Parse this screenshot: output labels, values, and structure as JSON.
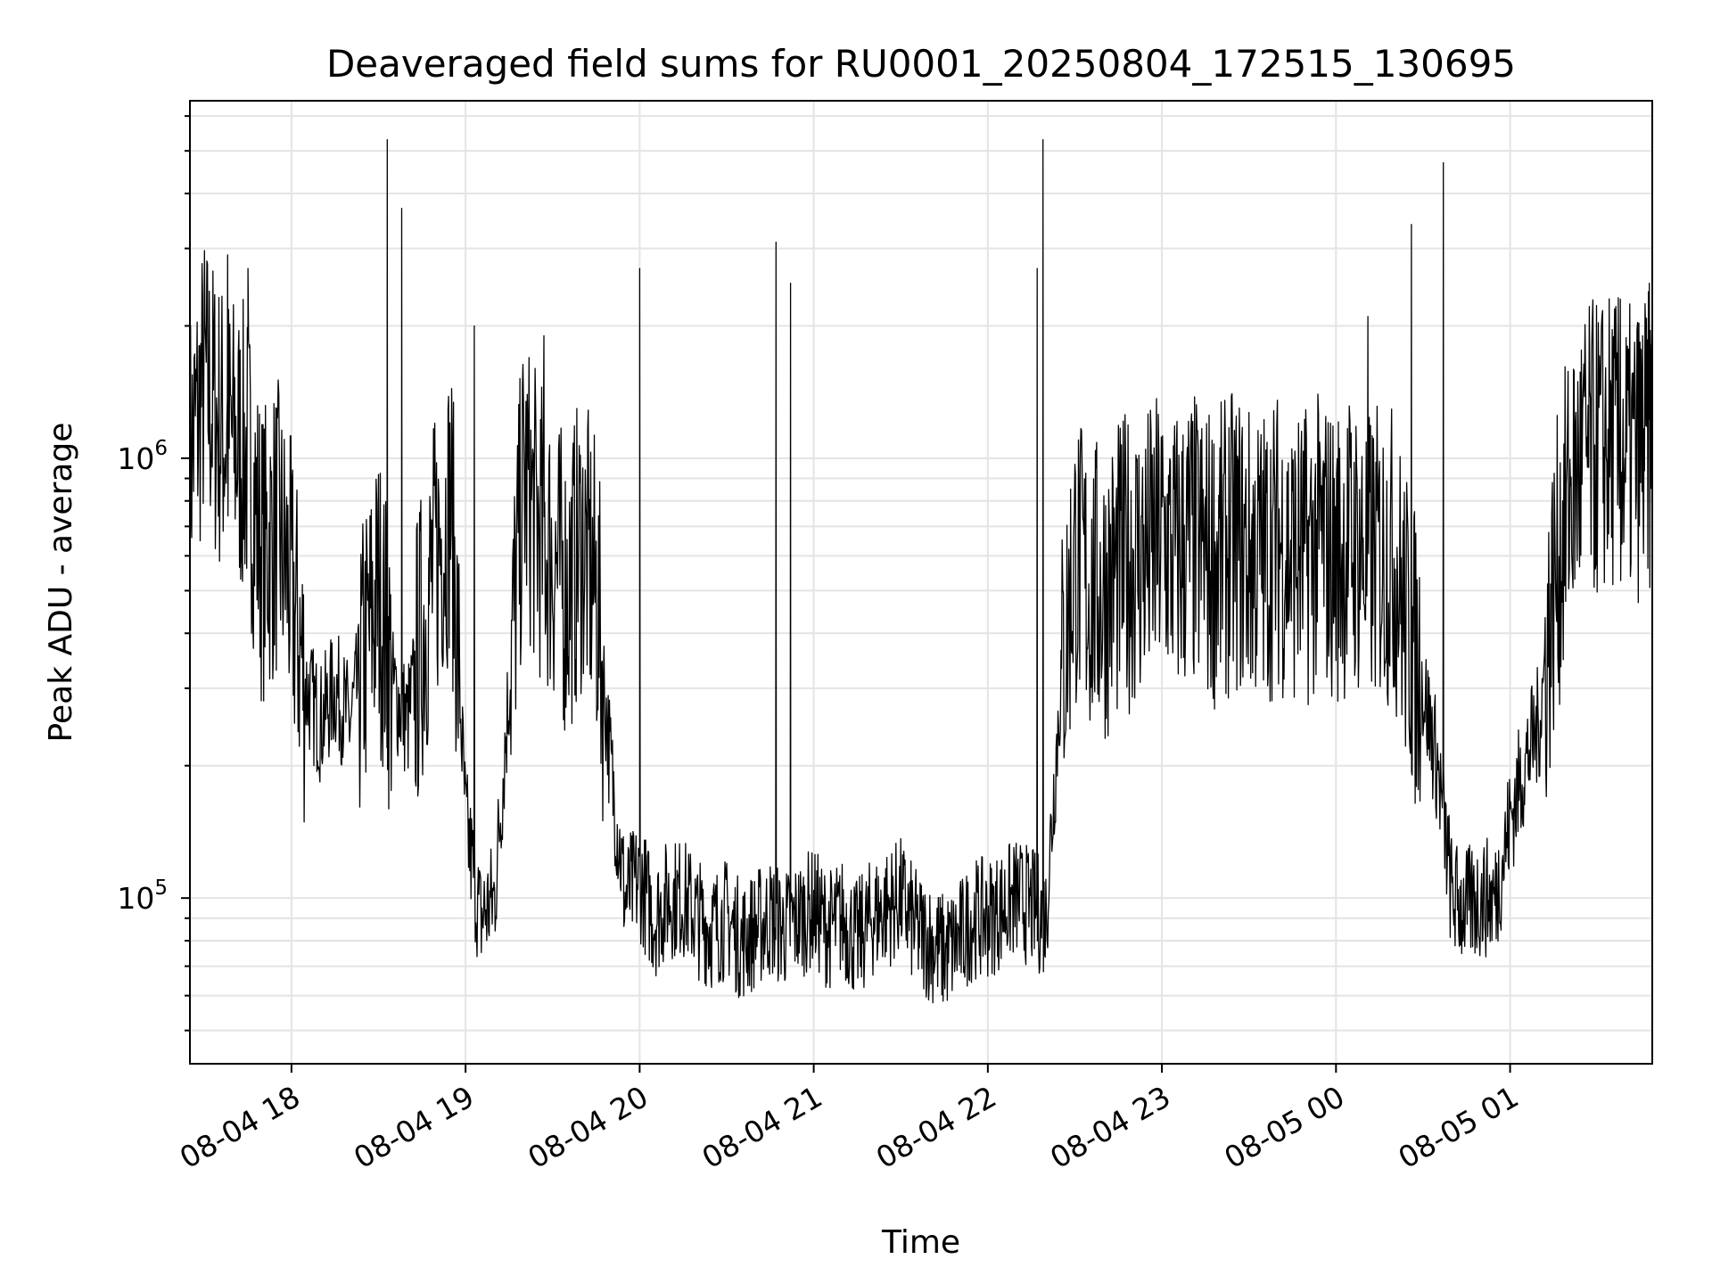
{
  "chart_data": {
    "type": "line",
    "title": "Deaveraged field sums for RU0001_20250804_172515_130695",
    "xlabel": "Time",
    "ylabel": "Peak ADU - average",
    "y_scale": "log",
    "ylim": [
      42000,
      6500000
    ],
    "xlim": [
      "2025-08-04 17:25",
      "2025-08-05 01:49"
    ],
    "x_ticks": [
      {
        "value": "2025-08-04 18:00",
        "label": "08-04 18"
      },
      {
        "value": "2025-08-04 19:00",
        "label": "08-04 19"
      },
      {
        "value": "2025-08-04 20:00",
        "label": "08-04 20"
      },
      {
        "value": "2025-08-04 21:00",
        "label": "08-04 21"
      },
      {
        "value": "2025-08-04 22:00",
        "label": "08-04 22"
      },
      {
        "value": "2025-08-04 23:00",
        "label": "08-04 23"
      },
      {
        "value": "2025-08-05 00:00",
        "label": "08-05 00"
      },
      {
        "value": "2025-08-05 01:00",
        "label": "08-05 01"
      }
    ],
    "y_ticks": [
      {
        "value": 100000,
        "base": "10",
        "exp": "5"
      },
      {
        "value": 1000000,
        "base": "10",
        "exp": "6"
      }
    ],
    "grid": true,
    "line_color": "#000000",
    "series": [
      {
        "x": [
          "2025-08-04 17:25",
          "2025-08-04 17:30",
          "2025-08-04 17:35",
          "2025-08-04 17:40",
          "2025-08-04 17:45",
          "2025-08-04 17:50",
          "2025-08-04 17:55",
          "2025-08-04 18:00",
          "2025-08-04 18:05",
          "2025-08-04 18:10",
          "2025-08-04 18:15",
          "2025-08-04 18:20",
          "2025-08-04 18:25",
          "2025-08-04 18:30",
          "2025-08-04 18:35",
          "2025-08-04 18:40",
          "2025-08-04 18:45",
          "2025-08-04 18:50",
          "2025-08-04 18:55",
          "2025-08-04 19:00",
          "2025-08-04 19:05",
          "2025-08-04 19:10",
          "2025-08-04 19:15",
          "2025-08-04 19:20",
          "2025-08-04 19:25",
          "2025-08-04 19:30",
          "2025-08-04 19:35",
          "2025-08-04 19:40",
          "2025-08-04 19:45",
          "2025-08-04 19:50",
          "2025-08-04 19:55",
          "2025-08-04 20:00",
          "2025-08-04 20:05",
          "2025-08-04 20:10",
          "2025-08-04 20:15",
          "2025-08-04 20:20",
          "2025-08-04 20:25",
          "2025-08-04 20:30",
          "2025-08-04 20:35",
          "2025-08-04 20:40",
          "2025-08-04 20:45",
          "2025-08-04 20:50",
          "2025-08-04 20:55",
          "2025-08-04 21:00",
          "2025-08-04 21:05",
          "2025-08-04 21:10",
          "2025-08-04 21:15",
          "2025-08-04 21:20",
          "2025-08-04 21:25",
          "2025-08-04 21:30",
          "2025-08-04 21:35",
          "2025-08-04 21:40",
          "2025-08-04 21:45",
          "2025-08-04 21:50",
          "2025-08-04 21:55",
          "2025-08-04 22:00",
          "2025-08-04 22:05",
          "2025-08-04 22:10",
          "2025-08-04 22:15",
          "2025-08-04 22:20",
          "2025-08-04 22:25",
          "2025-08-04 22:30",
          "2025-08-04 22:35",
          "2025-08-04 22:40",
          "2025-08-04 22:45",
          "2025-08-04 22:50",
          "2025-08-04 22:55",
          "2025-08-04 23:00",
          "2025-08-04 23:05",
          "2025-08-04 23:10",
          "2025-08-04 23:15",
          "2025-08-04 23:20",
          "2025-08-04 23:25",
          "2025-08-04 23:30",
          "2025-08-04 23:35",
          "2025-08-04 23:40",
          "2025-08-04 23:45",
          "2025-08-04 23:50",
          "2025-08-04 23:55",
          "2025-08-05 00:00",
          "2025-08-05 00:05",
          "2025-08-05 00:10",
          "2025-08-05 00:15",
          "2025-08-05 00:20",
          "2025-08-05 00:25",
          "2025-08-05 00:30",
          "2025-08-05 00:35",
          "2025-08-05 00:40",
          "2025-08-05 00:45",
          "2025-08-05 00:50",
          "2025-08-05 00:55",
          "2025-08-05 01:00",
          "2025-08-05 01:05",
          "2025-08-05 01:10",
          "2025-08-05 01:15",
          "2025-08-05 01:20",
          "2025-08-05 01:25",
          "2025-08-05 01:30",
          "2025-08-05 01:35",
          "2025-08-05 01:40",
          "2025-08-05 01:45",
          "2025-08-05 01:49"
        ],
        "y": [
          1000000,
          1500000,
          1200000,
          1100000,
          1000000,
          600000,
          700000,
          500000,
          300000,
          250000,
          300000,
          250000,
          350000,
          500000,
          300000,
          250000,
          400000,
          600000,
          800000,
          150000,
          90000,
          100000,
          300000,
          900000,
          700000,
          600000,
          500000,
          650000,
          500000,
          200000,
          100000,
          110000,
          90000,
          100000,
          100000,
          90000,
          85000,
          90000,
          80000,
          85000,
          90000,
          85000,
          90000,
          95000,
          85000,
          90000,
          80000,
          90000,
          95000,
          100000,
          85000,
          80000,
          75000,
          80000,
          90000,
          90000,
          95000,
          100000,
          95000,
          90000,
          300000,
          600000,
          500000,
          500000,
          550000,
          600000,
          600000,
          650000,
          600000,
          650000,
          600000,
          600000,
          650000,
          600000,
          600000,
          650000,
          600000,
          600000,
          650000,
          600000,
          650000,
          600000,
          600000,
          600000,
          400000,
          300000,
          200000,
          100000,
          95000,
          100000,
          100000,
          150000,
          200000,
          250000,
          500000,
          800000,
          1000000,
          1050000,
          1100000,
          1000000,
          1050000,
          1100000
        ],
        "peaks": [
          {
            "x": "2025-08-04 17:38",
            "y": 2900000
          },
          {
            "x": "2025-08-04 17:45",
            "y": 2700000
          },
          {
            "x": "2025-08-04 18:33",
            "y": 5300000
          },
          {
            "x": "2025-08-04 18:38",
            "y": 3700000
          },
          {
            "x": "2025-08-04 19:03",
            "y": 2000000
          },
          {
            "x": "2025-08-04 19:27",
            "y": 1900000
          },
          {
            "x": "2025-08-04 20:00",
            "y": 2700000
          },
          {
            "x": "2025-08-04 20:47",
            "y": 3100000
          },
          {
            "x": "2025-08-04 20:52",
            "y": 2500000
          },
          {
            "x": "2025-08-04 22:17",
            "y": 2700000
          },
          {
            "x": "2025-08-04 22:19",
            "y": 5300000
          },
          {
            "x": "2025-08-05 00:11",
            "y": 2100000
          },
          {
            "x": "2025-08-05 00:26",
            "y": 3400000
          },
          {
            "x": "2025-08-05 00:37",
            "y": 4700000
          },
          {
            "x": "2025-08-05 01:38",
            "y": 2300000
          },
          {
            "x": "2025-08-05 01:48",
            "y": 2500000
          }
        ]
      }
    ]
  }
}
